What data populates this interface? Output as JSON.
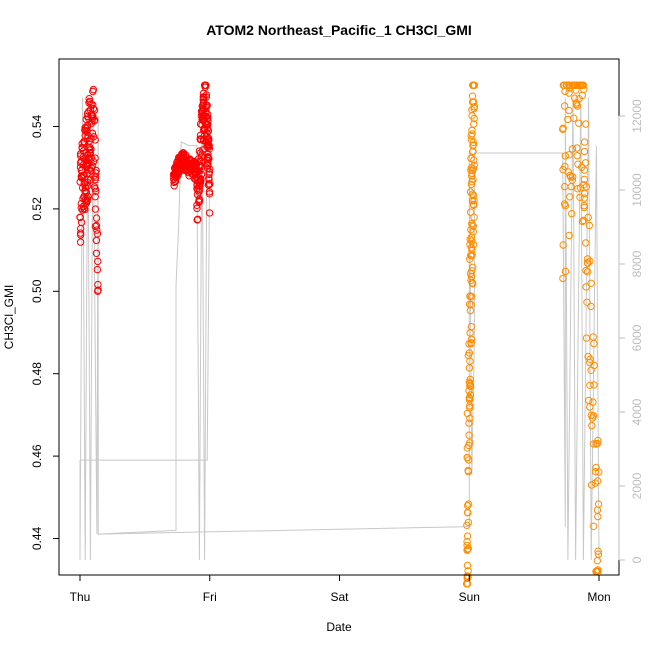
{
  "chart_data": {
    "type": "scatter",
    "title": "ATOM2 Northeast_Pacific_1 CH3Cl_GMI",
    "xlabel": "Date",
    "ylabel": "CH3Cl_GMI",
    "x_ticks": [
      "Thu",
      "Fri",
      "Sat",
      "Sun",
      "Mon"
    ],
    "xlim_days": [
      0,
      4
    ],
    "ylim": [
      0.4275,
      0.5525
    ],
    "y_ticks": [
      0.44,
      0.46,
      0.48,
      0.5,
      0.52,
      0.54
    ],
    "y2_ticks": [
      0,
      2000,
      4000,
      6000,
      8000,
      10000,
      12000
    ],
    "y2lim": [
      -200,
      13000
    ],
    "colors": {
      "red": "#ff0000",
      "orange": "#ff8c00",
      "altitude": "#c8c8c8",
      "right_axis": "#bdbdbd"
    },
    "series": [
      {
        "color": "#ff0000",
        "segments": [
          {
            "x": [
              0.0,
              0.04,
              0.08,
              0.1,
              0.14
            ],
            "ymin": 0.5,
            "ymax": 0.55,
            "y": [
              0.522,
              0.528,
              0.536,
              0.541,
              0.503
            ]
          },
          {
            "x": [
              0.72,
              0.78,
              0.84,
              0.9
            ],
            "ymin": 0.524,
            "ymax": 0.534,
            "y": [
              0.527,
              0.532,
              0.53,
              0.529
            ]
          },
          {
            "x": [
              0.9,
              0.94,
              0.98,
              1.0
            ],
            "ymin": 0.515,
            "ymax": 0.55,
            "y": [
              0.52,
              0.535,
              0.548,
              0.525
            ]
          }
        ]
      },
      {
        "color": "#ff8c00",
        "segments": [
          {
            "x": [
              2.98,
              3.0,
              3.02,
              3.04
            ],
            "ymin": 0.429,
            "ymax": 0.55,
            "y": [
              0.43,
              0.48,
              0.52,
              0.547
            ]
          },
          {
            "x": [
              3.72,
              3.8,
              3.88,
              3.96,
              4.0
            ],
            "ymin": 0.432,
            "ymax": 0.55,
            "y": [
              0.525,
              0.545,
              0.548,
              0.49,
              0.432
            ]
          }
        ]
      }
    ],
    "altitude_note": "grey line on right axis"
  }
}
